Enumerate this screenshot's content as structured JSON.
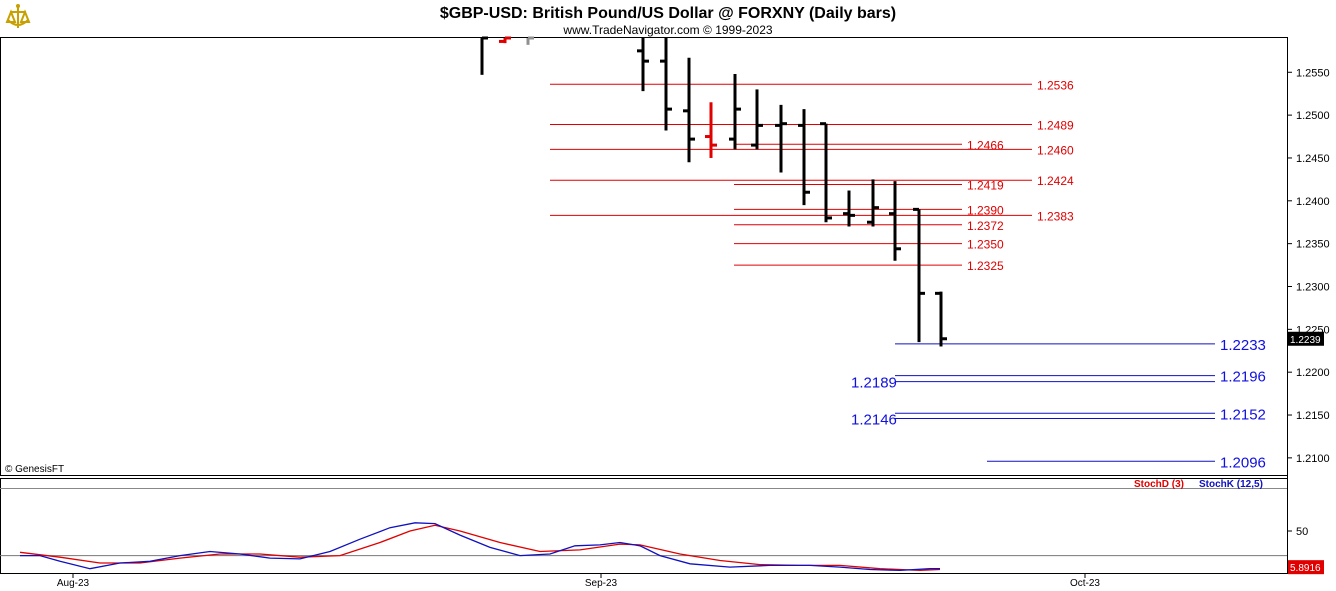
{
  "header": {
    "title": "$GBP-USD:  British Pound/US Dollar @ FORXNY  (Daily bars)",
    "subtitle": "www.TradeNavigator.com © 1999-2023",
    "copyright": "© GenesisFT"
  },
  "colors": {
    "bar": "#000000",
    "down_bar": "#e00000",
    "up_bar": "#909090",
    "red_level": "#e00000",
    "blue_level": "#1010c0",
    "stoch_d": "#e00000",
    "stoch_k": "#1010c0"
  },
  "chart_data": [
    {
      "type": "ohlc",
      "ylim": [
        1.208,
        1.259
      ],
      "ticks": [
        {
          "v": 1.255,
          "label": "1.2550"
        },
        {
          "v": 1.25,
          "label": "1.2500"
        },
        {
          "v": 1.245,
          "label": "1.2450"
        },
        {
          "v": 1.24,
          "label": "1.2400"
        },
        {
          "v": 1.235,
          "label": "1.2350"
        },
        {
          "v": 1.23,
          "label": "1.2300"
        },
        {
          "v": 1.225,
          "label": "1.2250"
        },
        {
          "v": 1.22,
          "label": "1.2200"
        },
        {
          "v": 1.215,
          "label": "1.2150"
        },
        {
          "v": 1.21,
          "label": "1.2100"
        }
      ],
      "last_price": {
        "v": 1.2239,
        "label": "1.2239"
      },
      "bars": [
        {
          "x": 482,
          "o": 1.26,
          "h": 1.26,
          "l": 1.2547,
          "c": 1.259,
          "color": "bar"
        },
        {
          "x": 505,
          "o": 1.2586,
          "h": 1.26,
          "l": 1.2584,
          "c": 1.259,
          "color": "down_bar"
        },
        {
          "x": 528,
          "o": 1.2592,
          "h": 1.26,
          "l": 1.2582,
          "c": 1.259,
          "color": "up_bar"
        },
        {
          "x": 643,
          "o": 1.2575,
          "h": 1.26,
          "l": 1.2528,
          "c": 1.2563,
          "color": "bar"
        },
        {
          "x": 666,
          "o": 1.2563,
          "h": 1.26,
          "l": 1.2482,
          "c": 1.2507,
          "color": "bar"
        },
        {
          "x": 689,
          "o": 1.2505,
          "h": 1.2567,
          "l": 1.2445,
          "c": 1.2472,
          "color": "bar"
        },
        {
          "x": 711,
          "o": 1.2475,
          "h": 1.2515,
          "l": 1.245,
          "c": 1.2465,
          "color": "down_bar"
        },
        {
          "x": 735,
          "o": 1.2472,
          "h": 1.2548,
          "l": 1.246,
          "c": 1.2507,
          "color": "bar"
        },
        {
          "x": 757,
          "o": 1.2465,
          "h": 1.253,
          "l": 1.246,
          "c": 1.2488,
          "color": "bar"
        },
        {
          "x": 781,
          "o": 1.2488,
          "h": 1.2512,
          "l": 1.2433,
          "c": 1.249,
          "color": "bar"
        },
        {
          "x": 804,
          "o": 1.2488,
          "h": 1.2507,
          "l": 1.2395,
          "c": 1.241,
          "color": "bar"
        },
        {
          "x": 826,
          "o": 1.249,
          "h": 1.249,
          "l": 1.2375,
          "c": 1.238,
          "color": "bar"
        },
        {
          "x": 849,
          "o": 1.2385,
          "h": 1.2412,
          "l": 1.237,
          "c": 1.2383,
          "color": "bar"
        },
        {
          "x": 873,
          "o": 1.2375,
          "h": 1.2425,
          "l": 1.237,
          "c": 1.2392,
          "color": "bar"
        },
        {
          "x": 895,
          "o": 1.2385,
          "h": 1.2423,
          "l": 1.233,
          "c": 1.2344,
          "color": "bar"
        },
        {
          "x": 919,
          "o": 1.239,
          "h": 1.239,
          "l": 1.2235,
          "c": 1.2292,
          "color": "bar"
        },
        {
          "x": 941,
          "o": 1.2292,
          "h": 1.2294,
          "l": 1.223,
          "c": 1.2239,
          "color": "bar"
        }
      ],
      "red_levels": [
        {
          "v": 1.2536,
          "label": "1.2536",
          "x1": 550,
          "x2": 1032,
          "lx": 1037
        },
        {
          "v": 1.2489,
          "label": "1.2489",
          "x1": 550,
          "x2": 1032,
          "lx": 1037
        },
        {
          "v": 1.2466,
          "label": "1.2466",
          "x1": 734,
          "x2": 962,
          "lx": 967
        },
        {
          "v": 1.246,
          "label": "1.2460",
          "x1": 550,
          "x2": 1032,
          "lx": 1037
        },
        {
          "v": 1.2424,
          "label": "1.2424",
          "x1": 550,
          "x2": 1032,
          "lx": 1037
        },
        {
          "v": 1.2419,
          "label": "1.2419",
          "x1": 734,
          "x2": 962,
          "lx": 967
        },
        {
          "v": 1.239,
          "label": "1.2390",
          "x1": 734,
          "x2": 962,
          "lx": 967
        },
        {
          "v": 1.2383,
          "label": "1.2383",
          "x1": 550,
          "x2": 1032,
          "lx": 1037
        },
        {
          "v": 1.2372,
          "label": "1.2372",
          "x1": 734,
          "x2": 962,
          "lx": 967
        },
        {
          "v": 1.235,
          "label": "1.2350",
          "x1": 734,
          "x2": 962,
          "lx": 967
        },
        {
          "v": 1.2325,
          "label": "1.2325",
          "x1": 734,
          "x2": 962,
          "lx": 967
        }
      ],
      "blue_levels": [
        {
          "v": 1.2233,
          "label": "1.2233",
          "x1": 895,
          "x2": 1215,
          "lx": 1220,
          "side": "right"
        },
        {
          "v": 1.2196,
          "label": "1.2196",
          "x1": 895,
          "x2": 1215,
          "lx": 1220,
          "side": "right"
        },
        {
          "v": 1.2189,
          "label": "1.2189",
          "x1": 895,
          "x2": 1215,
          "lx": 851,
          "side": "left"
        },
        {
          "v": 1.2152,
          "label": "1.2152",
          "x1": 895,
          "x2": 1215,
          "lx": 1220,
          "side": "right"
        },
        {
          "v": 1.2146,
          "label": "1.2146",
          "x1": 895,
          "x2": 1215,
          "lx": 851,
          "side": "left"
        },
        {
          "v": 1.2096,
          "label": "1.2096",
          "x1": 987,
          "x2": 1215,
          "lx": 1220,
          "side": "right"
        }
      ]
    },
    {
      "type": "line",
      "ylim": [
        0,
        100
      ],
      "ticks": [
        {
          "v": 50,
          "label": "50"
        }
      ],
      "ref_line": 20,
      "last_value": {
        "v": 5.8916,
        "label": "5.8916"
      },
      "legend": [
        {
          "name": "StochD (3)",
          "color": "stoch_d"
        },
        {
          "name": "StochK (12,5)",
          "color": "stoch_k"
        }
      ],
      "series": [
        {
          "name": "StochD (3)",
          "color": "stoch_d",
          "points": [
            [
              20,
              24
            ],
            [
              60,
              18
            ],
            [
              100,
              11
            ],
            [
              140,
              11
            ],
            [
              180,
              17
            ],
            [
              220,
              22
            ],
            [
              260,
              22
            ],
            [
              300,
              18
            ],
            [
              340,
              20
            ],
            [
              380,
              36
            ],
            [
              410,
              50
            ],
            [
              435,
              57
            ],
            [
              460,
              50
            ],
            [
              500,
              36
            ],
            [
              540,
              25
            ],
            [
              580,
              27
            ],
            [
              620,
              34
            ],
            [
              640,
              33
            ],
            [
              680,
              22
            ],
            [
              720,
              14
            ],
            [
              760,
              9
            ],
            [
              800,
              8
            ],
            [
              840,
              8
            ],
            [
              880,
              4
            ],
            [
              920,
              2
            ],
            [
              940,
              3
            ]
          ]
        },
        {
          "name": "StochK (12,5)",
          "color": "stoch_k",
          "points": [
            [
              20,
              20
            ],
            [
              40,
              20
            ],
            [
              60,
              13
            ],
            [
              90,
              4
            ],
            [
              120,
              11
            ],
            [
              150,
              13
            ],
            [
              180,
              20
            ],
            [
              210,
              25
            ],
            [
              240,
              22
            ],
            [
              270,
              17
            ],
            [
              300,
              16
            ],
            [
              330,
              25
            ],
            [
              360,
              40
            ],
            [
              390,
              54
            ],
            [
              415,
              60
            ],
            [
              435,
              59
            ],
            [
              460,
              45
            ],
            [
              490,
              30
            ],
            [
              520,
              20
            ],
            [
              550,
              22
            ],
            [
              575,
              32
            ],
            [
              600,
              33
            ],
            [
              620,
              36
            ],
            [
              640,
              32
            ],
            [
              660,
              20
            ],
            [
              690,
              10
            ],
            [
              730,
              6
            ],
            [
              770,
              8
            ],
            [
              810,
              8
            ],
            [
              840,
              6
            ],
            [
              870,
              3
            ],
            [
              900,
              2
            ],
            [
              930,
              4
            ],
            [
              940,
              4
            ]
          ]
        }
      ]
    }
  ],
  "x_axis": {
    "labels": [
      {
        "label": "Aug-23",
        "x": 73
      },
      {
        "label": "Sep-23",
        "x": 601
      },
      {
        "label": "Oct-23",
        "x": 1085
      }
    ]
  }
}
